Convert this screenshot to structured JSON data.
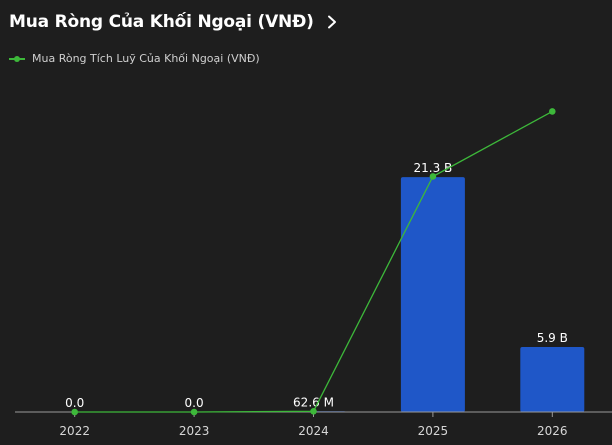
{
  "header": {
    "title": "Mua Ròng Của Khối Ngoại (VNĐ)",
    "chevron_icon": "chevron-right-icon"
  },
  "colors": {
    "background": "#1e1e1e",
    "bar": "#1f57c8",
    "line": "#3db83a",
    "axis": "#9a9a9a",
    "label": "#ffffff"
  },
  "chart_data": {
    "type": "bar",
    "categories": [
      "2022",
      "2023",
      "2024",
      "2025",
      "2026"
    ],
    "series": [
      {
        "name": "",
        "type": "bar",
        "values": [
          0,
          0,
          0.0626,
          21.3,
          5.9
        ],
        "labels": [
          "0.0",
          "0.0",
          "62.6 M",
          "21.3 B",
          "5.9 B"
        ]
      },
      {
        "name": "Mua Ròng Tích Luỹ Của Khối Ngoại (VNĐ)",
        "type": "line",
        "values": [
          0,
          0,
          0.0626,
          21.3626,
          27.2626
        ]
      }
    ],
    "unit": "B VNĐ",
    "ylim": [
      0,
      27.3
    ],
    "grid": false,
    "legend_position": "top-left"
  }
}
